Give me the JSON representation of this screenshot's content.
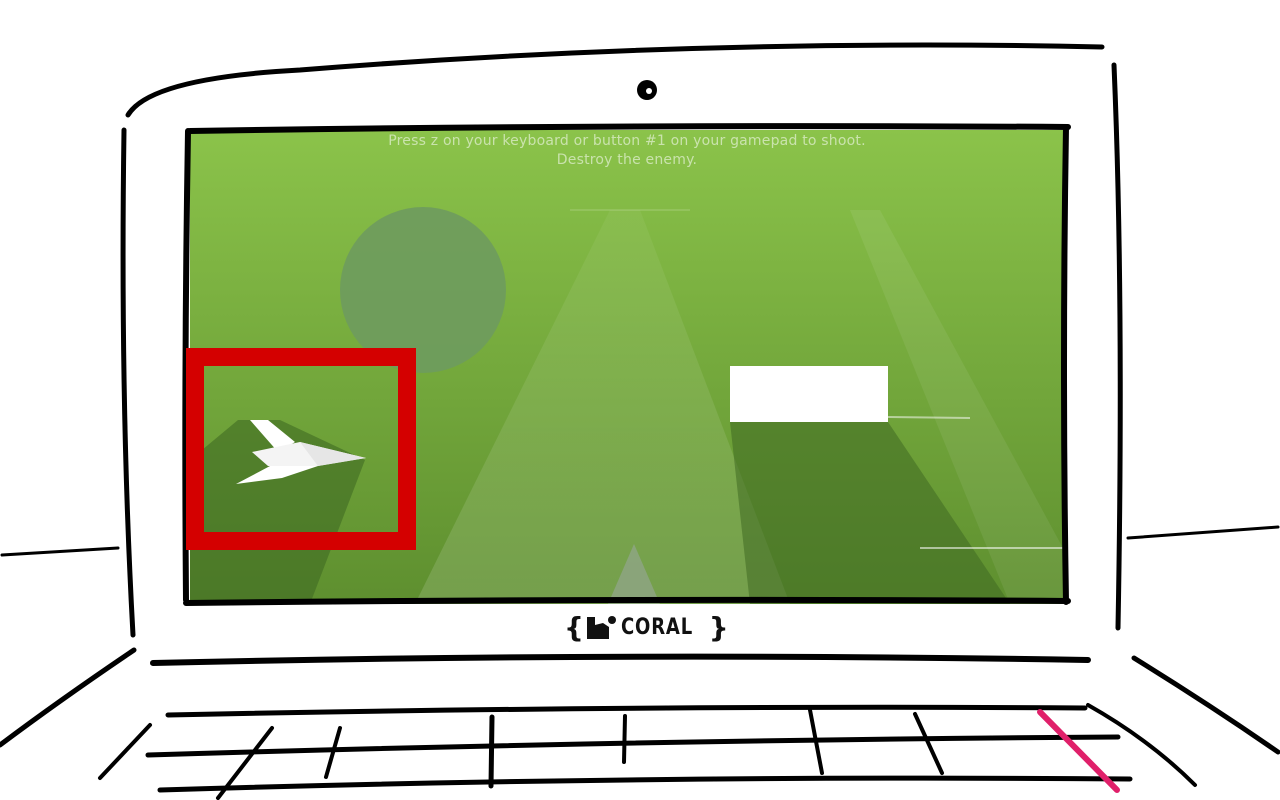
{
  "game": {
    "instructions": {
      "line1": "Press z on your keyboard or button #1 on your gamepad to shoot.",
      "line2": "Destroy the enemy."
    }
  },
  "laptop": {
    "brand_logo": {
      "brace_open": "{",
      "brace_close": "}",
      "word": "CORAL",
      "icon": "coral-logo-icon"
    }
  },
  "colors": {
    "sky_top": "#8bc34a",
    "sky_bottom": "#5e8f2f",
    "sun": "#6e9b5e",
    "shadow": "#3f6a23",
    "highlight": "#d40000",
    "stylus": "#e0206a",
    "enemy": "#ffffff",
    "player_ship": "#ffffff"
  }
}
